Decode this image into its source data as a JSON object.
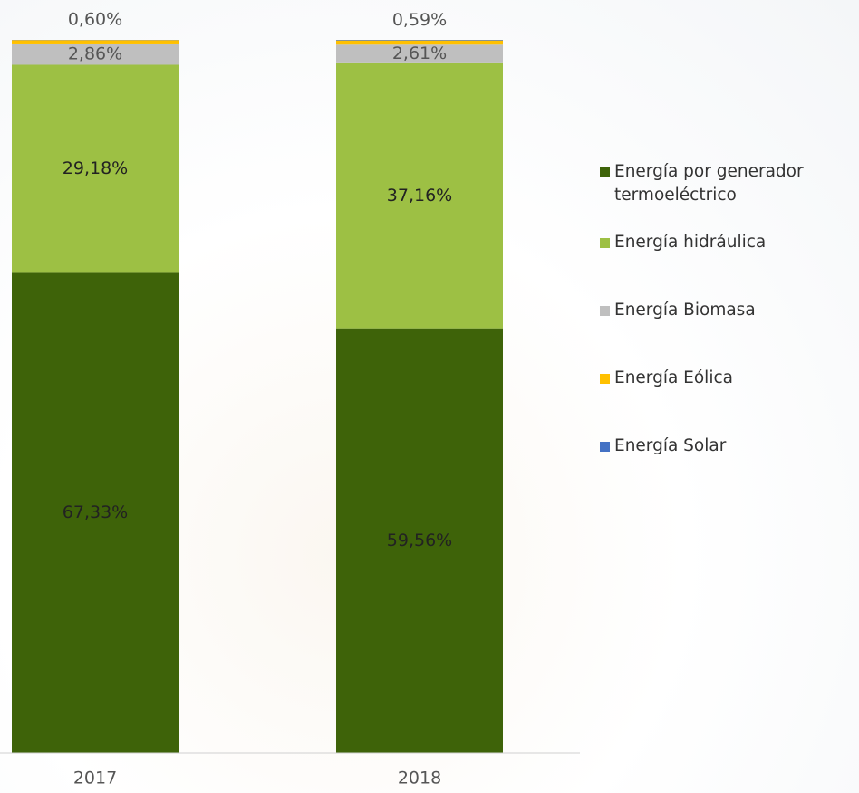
{
  "chart_data": {
    "type": "stacked_bar",
    "categories": [
      "2017",
      "2018"
    ],
    "ylim": [
      0,
      100
    ],
    "series": [
      {
        "name": "Energía por generador termoeléctrico",
        "color": "#3e6309",
        "values": [
          67.33,
          59.56
        ],
        "value_labels": [
          "67,33%",
          "59,56%"
        ]
      },
      {
        "name": "Energía hidráulica",
        "color": "#9dc044",
        "values": [
          29.18,
          37.16
        ],
        "value_labels": [
          "29,18%",
          "37,16%"
        ]
      },
      {
        "name": "Energía Biomasa",
        "color": "#bfbfbf",
        "values": [
          2.86,
          2.61
        ],
        "value_labels": [
          "2,86%",
          "2,61%"
        ]
      },
      {
        "name": "Energía Eólica",
        "color": "#ffc000",
        "values": [
          0.6,
          0.59
        ],
        "value_labels": [
          "0,60%",
          "0,59%"
        ]
      },
      {
        "name": "Energía Solar",
        "color": "#4472c4",
        "values": [
          0.03,
          0.08
        ],
        "value_labels": [
          null,
          null
        ]
      }
    ]
  }
}
